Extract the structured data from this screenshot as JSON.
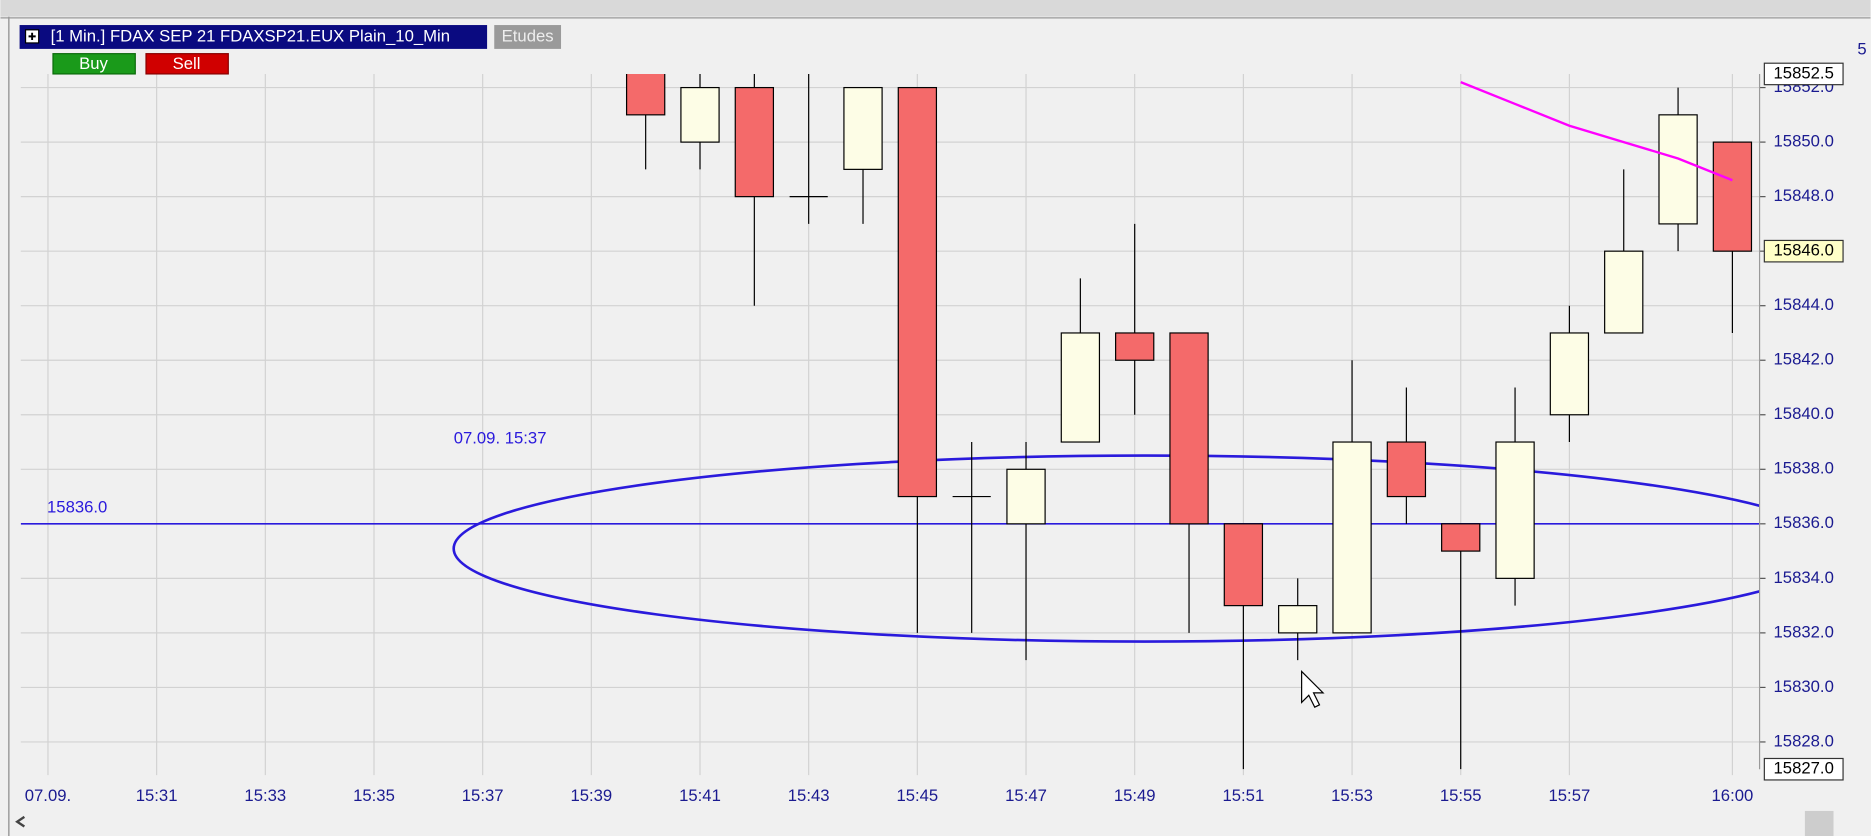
{
  "chart_data": {
    "type": "candlestick",
    "header": "[1 Min.] FDAX SEP 21   FDAXSP21.EUX Plain_10_Min",
    "studies_button": "Etudes",
    "buy_button": "Buy",
    "sell_button": "Sell",
    "right_edge_text": "5",
    "categories": [
      "07.09.",
      null,
      "15:31",
      null,
      "15:33",
      null,
      "15:35",
      null,
      "15:37",
      null,
      "15:39",
      null,
      "15:41",
      null,
      "15:43",
      null,
      "15:45",
      null,
      "15:47",
      null,
      "15:49",
      null,
      "15:51",
      null,
      "15:53",
      null,
      "15:55",
      null,
      "15:57",
      null,
      null,
      "16:00"
    ],
    "open": [
      null,
      null,
      null,
      null,
      null,
      null,
      null,
      null,
      null,
      null,
      null,
      15853,
      15850,
      15852,
      15848,
      15849,
      15852,
      15837,
      15836,
      15839,
      15843,
      15843,
      15836,
      15832,
      15832,
      15839,
      15836,
      15834,
      15840,
      15843,
      15847,
      15850
    ],
    "high": [
      null,
      null,
      null,
      null,
      null,
      null,
      null,
      null,
      null,
      null,
      null,
      15853.5,
      15853,
      15853,
      15853,
      15852,
      15852,
      15839,
      15839,
      15845,
      15847,
      15843,
      15836,
      15834,
      15842,
      15841,
      15836,
      15841,
      15844,
      15849,
      15852,
      15850
    ],
    "low": [
      null,
      null,
      null,
      null,
      null,
      null,
      null,
      null,
      null,
      null,
      null,
      15849,
      15849,
      15844,
      15847,
      15847,
      15832,
      15832,
      15831,
      15839,
      15840,
      15832,
      15827,
      15831,
      15832,
      15836,
      15827,
      15833,
      15839,
      15843,
      15846,
      15843
    ],
    "close": [
      null,
      null,
      null,
      null,
      null,
      null,
      null,
      null,
      null,
      null,
      null,
      15851,
      15852,
      15848,
      15848,
      15852,
      15837,
      15837,
      15838,
      15843,
      15842,
      15836,
      15833,
      15833,
      15839,
      15837,
      15835,
      15839,
      15843,
      15846,
      15851,
      15846
    ],
    "up_color": "#fdfde6",
    "down_color": "#f46a6a",
    "indicator": {
      "color": "#ff00ff",
      "values": [
        null,
        null,
        null,
        null,
        null,
        null,
        null,
        null,
        null,
        null,
        null,
        null,
        null,
        null,
        null,
        null,
        null,
        null,
        null,
        null,
        null,
        null,
        null,
        null,
        null,
        null,
        15852.2,
        15851.4,
        15850.6,
        15850.0,
        15849.4,
        15848.6
      ]
    },
    "hline": {
      "value": 15836,
      "label": "15836.0",
      "color": "#2a1adc"
    },
    "ellipse_label": "07.09. 15:37",
    "last_price": {
      "value": 15846,
      "label": "15846.0"
    },
    "range_labels": [
      {
        "value": 15852.5,
        "label": "15852.5"
      },
      {
        "value": 15827,
        "label": "15827.0"
      }
    ],
    "ylim": [
      15827,
      15852.5
    ],
    "yticks": [
      {
        "value": 15828,
        "label": "15828.0"
      },
      {
        "value": 15830,
        "label": "15830.0"
      },
      {
        "value": 15832,
        "label": "15832.0"
      },
      {
        "value": 15834,
        "label": "15834.0"
      },
      {
        "value": 15836,
        "label": "15836.0"
      },
      {
        "value": 15838,
        "label": "15838.0"
      },
      {
        "value": 15840,
        "label": "15840.0"
      },
      {
        "value": 15842,
        "label": "15842.0"
      },
      {
        "value": 15844,
        "label": "15844.0"
      },
      {
        "value": 15846,
        "label": "15846.0"
      },
      {
        "value": 15848,
        "label": "15848.0"
      },
      {
        "value": 15850,
        "label": "15850.0"
      },
      {
        "value": 15852,
        "label": "15852.0"
      }
    ],
    "grid": true
  }
}
